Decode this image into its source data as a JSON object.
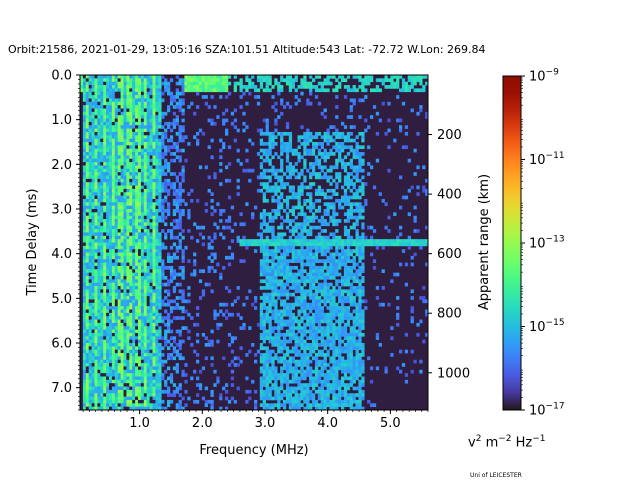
{
  "title": "Orbit:21586, 2021-01-29, 13:05:16 SZA:101.51 Altitude:543 Lat: -72.72 W.Lon: 269.84",
  "credit": "Uni of LEICESTER",
  "colorbar": {
    "units_base": "v",
    "units_exp": "2",
    "units_mid": " m",
    "units_exp2": "−2",
    "units_end": " Hz",
    "units_exp3": "−1",
    "scale": "log",
    "min_exp": -17,
    "max_exp": -9,
    "ticks": [
      {
        "exp": -17,
        "base": "10",
        "sup": "−17"
      },
      {
        "exp": -15,
        "base": "10",
        "sup": "−15"
      },
      {
        "exp": -13,
        "base": "10",
        "sup": "−13"
      },
      {
        "exp": -11,
        "base": "10",
        "sup": "−11"
      },
      {
        "exp": -9,
        "base": "10",
        "sup": "−9"
      }
    ],
    "colormap": "turbo"
  },
  "chart_data": {
    "type": "heatmap",
    "xlabel": "Frequency (MHz)",
    "ylabel": "Time Delay (ms)",
    "y2label": "Apparent range (km)",
    "xlim": [
      0.05,
      5.6
    ],
    "ylim": [
      7.5,
      0.0
    ],
    "y2_km_per_ms": 150,
    "xticks": [
      {
        "v": 1.0,
        "label": "1.0"
      },
      {
        "v": 2.0,
        "label": "2.0"
      },
      {
        "v": 3.0,
        "label": "3.0"
      },
      {
        "v": 4.0,
        "label": "4.0"
      },
      {
        "v": 5.0,
        "label": "5.0"
      }
    ],
    "yticks": [
      {
        "v": 0.0,
        "label": "0.0"
      },
      {
        "v": 1.0,
        "label": "1.0"
      },
      {
        "v": 2.0,
        "label": "2.0"
      },
      {
        "v": 3.0,
        "label": "3.0"
      },
      {
        "v": 4.0,
        "label": "4.0"
      },
      {
        "v": 5.0,
        "label": "5.0"
      },
      {
        "v": 6.0,
        "label": "6.0"
      },
      {
        "v": 7.0,
        "label": "7.0"
      }
    ],
    "y2ticks": [
      {
        "km": 200,
        "label": "200"
      },
      {
        "km": 400,
        "label": "400"
      },
      {
        "km": 600,
        "label": "600"
      },
      {
        "km": 800,
        "label": "800"
      },
      {
        "km": 1000,
        "label": "1000"
      }
    ],
    "features": {
      "background_log10": -16.9,
      "surface_echo_delay_ms": 0.25,
      "surface_echo_log10": -14.2,
      "ground_interference_band_mhz": [
        0.1,
        1.35
      ],
      "band_edge_mhz": 1.7,
      "diffuse_region_mhz": [
        2.9,
        4.6
      ],
      "diffuse_region_log10": -15.6,
      "trace_delay_ms": 3.75,
      "trace_start_mhz": 2.6,
      "trace_end_mhz": 5.6,
      "trace_log10": -15.0,
      "data_end_delay_ms": 6.9,
      "data_end_mhz": 4.8
    }
  }
}
